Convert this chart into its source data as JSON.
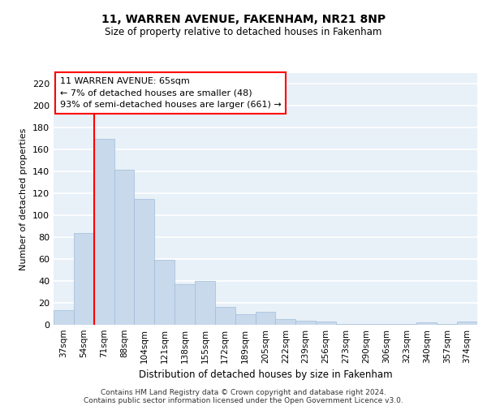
{
  "title": "11, WARREN AVENUE, FAKENHAM, NR21 8NP",
  "subtitle": "Size of property relative to detached houses in Fakenham",
  "xlabel": "Distribution of detached houses by size in Fakenham",
  "ylabel": "Number of detached properties",
  "categories": [
    "37sqm",
    "54sqm",
    "71sqm",
    "88sqm",
    "104sqm",
    "121sqm",
    "138sqm",
    "155sqm",
    "172sqm",
    "189sqm",
    "205sqm",
    "222sqm",
    "239sqm",
    "256sqm",
    "273sqm",
    "290sqm",
    "306sqm",
    "323sqm",
    "340sqm",
    "357sqm",
    "374sqm"
  ],
  "values": [
    13,
    84,
    170,
    142,
    115,
    59,
    37,
    40,
    16,
    10,
    12,
    5,
    4,
    3,
    1,
    1,
    1,
    1,
    2,
    1,
    3
  ],
  "bar_color": "#c8d9ec",
  "bar_edge_color": "#a0bdd8",
  "vline_x": 1.5,
  "vline_color": "red",
  "annotation_line1": "11 WARREN AVENUE: 65sqm",
  "annotation_line2": "← 7% of detached houses are smaller (48)",
  "annotation_line3": "93% of semi-detached houses are larger (661) →",
  "annotation_box_color": "white",
  "annotation_box_edge_color": "red",
  "ylim": [
    0,
    230
  ],
  "yticks": [
    0,
    20,
    40,
    60,
    80,
    100,
    120,
    140,
    160,
    180,
    200,
    220
  ],
  "footnote_line1": "Contains HM Land Registry data © Crown copyright and database right 2024.",
  "footnote_line2": "Contains public sector information licensed under the Open Government Licence v3.0.",
  "background_color": "#e8f0f8",
  "grid_color": "white"
}
